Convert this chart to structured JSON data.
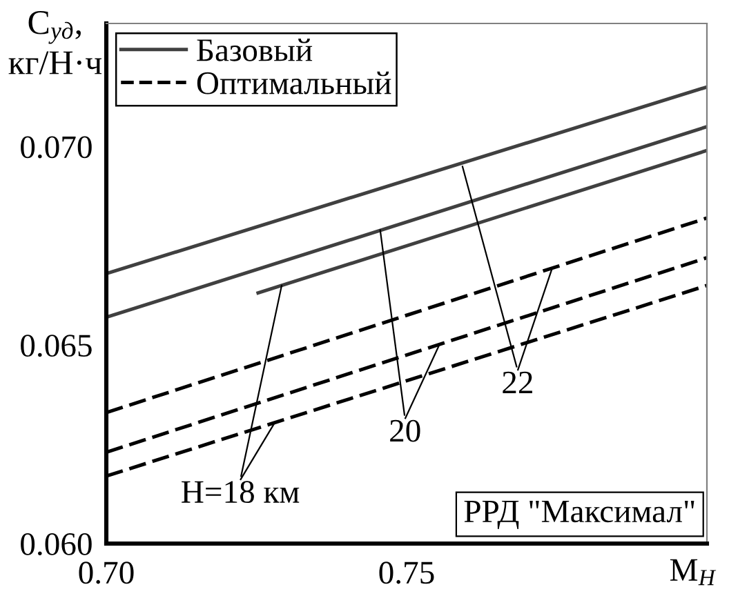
{
  "chart_data": {
    "type": "line",
    "xlabel": "M$_{H}$",
    "ylabel": "C$_{уд}$, кг/Н·ч",
    "xlim": [
      0.7,
      0.8
    ],
    "ylim": [
      0.06,
      0.0731
    ],
    "xticks": [
      {
        "value": 0.7,
        "label": "0.70"
      },
      0.75
    ],
    "yticks": [
      {
        "value": 0.06,
        "label": "0.060"
      },
      {
        "value": 0.065,
        "label": "0.065"
      },
      {
        "value": 0.07,
        "label": "0.070"
      }
    ],
    "legend": "top left",
    "series": [
      {
        "name": "Базовый",
        "color": "#404040",
        "line_style": "solid",
        "x": [
          0.725,
          0.8
        ],
        "values": [
          0.0663,
          0.0699
        ]
      },
      {
        "color": "#404040",
        "line_style": "solid",
        "x": [
          0.7,
          0.8
        ],
        "values": [
          0.0657,
          0.0705
        ]
      },
      {
        "color": "#404040",
        "line_style": "solid",
        "x": [
          0.7,
          0.8
        ],
        "values": [
          0.0668,
          0.0715
        ]
      },
      {
        "name": "Оптимальный",
        "color": "#000000",
        "line_style": "dashed",
        "x": [
          0.7,
          0.8
        ],
        "values": [
          0.0617,
          0.0665
        ]
      },
      {
        "color": "#000000",
        "line_style": "dashed",
        "x": [
          0.7,
          0.8
        ],
        "values": [
          0.0623,
          0.0672
        ]
      },
      {
        "color": "#000000",
        "line_style": "dashed",
        "x": [
          0.7,
          0.8
        ],
        "values": [
          0.0633,
          0.0682
        ]
      }
    ],
    "annotations": [
      {
        "text": "H=18 км",
        "x": 0.7292,
        "y": 0.0665
      },
      {
        "text": "20",
        "x": 0.7456,
        "y": 0.0679
      },
      {
        "text": "22",
        "x": 0.7593,
        "y": 0.0695
      },
      "РРД \"Максимал\""
    ]
  }
}
